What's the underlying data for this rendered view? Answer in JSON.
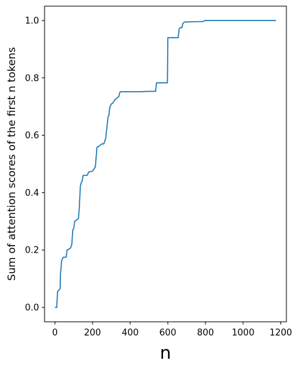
{
  "chart_data": {
    "type": "line",
    "title": "",
    "xlabel": "n",
    "ylabel": "Sum of attention scores of the first n tokens",
    "xlim": [
      -55,
      1230
    ],
    "ylim": [
      -0.05,
      1.05
    ],
    "x_ticks": [
      0,
      200,
      400,
      600,
      800,
      1000,
      1200
    ],
    "y_ticks": [
      0.0,
      0.2,
      0.4,
      0.6,
      0.8,
      1.0
    ],
    "x_tick_labels": [
      "0",
      "200",
      "400",
      "600",
      "800",
      "1000",
      "1200"
    ],
    "y_tick_labels": [
      "0.0",
      "0.2",
      "0.4",
      "0.6",
      "0.8",
      "1.0"
    ],
    "grid": false,
    "line_color": "#1f77b4",
    "series": [
      {
        "x": [
          0,
          10,
          12,
          14,
          20,
          28,
          30,
          33,
          35,
          40,
          45,
          60,
          65,
          80,
          85,
          90,
          95,
          100,
          105,
          115,
          125,
          130,
          135,
          138,
          140,
          145,
          150,
          170,
          175,
          180,
          200,
          205,
          215,
          220,
          223,
          226,
          230,
          240,
          250,
          260,
          265,
          270,
          275,
          280,
          283,
          287,
          290,
          293,
          297,
          300,
          305,
          310,
          315,
          320,
          330,
          340,
          345,
          350,
          355,
          360,
          365,
          370,
          380,
          400,
          450,
          500,
          535,
          540,
          560,
          580,
          598,
          600,
          610,
          640,
          655,
          660,
          665,
          675,
          680,
          690,
          700,
          750,
          785,
          790,
          800,
          1175
        ],
        "y": [
          0.0,
          0.0,
          0.03,
          0.055,
          0.06,
          0.065,
          0.12,
          0.14,
          0.16,
          0.17,
          0.175,
          0.175,
          0.2,
          0.205,
          0.21,
          0.22,
          0.27,
          0.275,
          0.3,
          0.305,
          0.31,
          0.35,
          0.42,
          0.43,
          0.435,
          0.44,
          0.46,
          0.46,
          0.465,
          0.472,
          0.475,
          0.48,
          0.49,
          0.53,
          0.555,
          0.56,
          0.56,
          0.565,
          0.57,
          0.57,
          0.58,
          0.59,
          0.62,
          0.65,
          0.665,
          0.67,
          0.69,
          0.7,
          0.705,
          0.71,
          0.71,
          0.715,
          0.72,
          0.725,
          0.73,
          0.735,
          0.75,
          0.752,
          0.752,
          0.752,
          0.752,
          0.752,
          0.752,
          0.752,
          0.752,
          0.753,
          0.753,
          0.783,
          0.783,
          0.783,
          0.783,
          0.94,
          0.94,
          0.94,
          0.94,
          0.97,
          0.975,
          0.975,
          0.99,
          0.995,
          0.995,
          0.996,
          0.996,
          0.998,
          1.0,
          1.0
        ]
      }
    ]
  }
}
